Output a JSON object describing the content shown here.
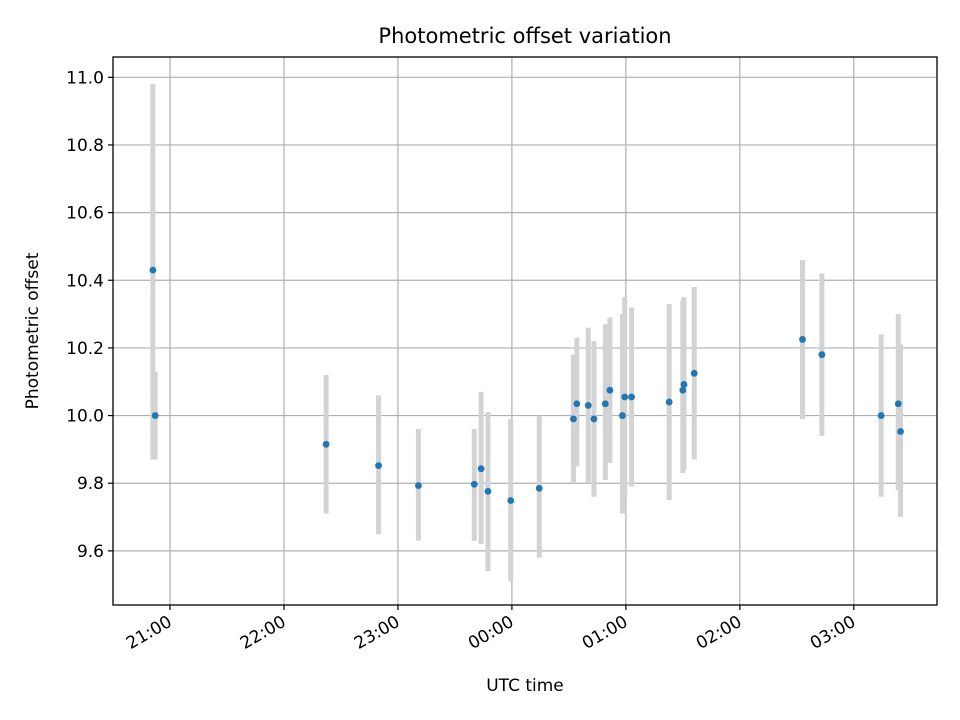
{
  "chart_data": {
    "type": "scatter",
    "title": "Photometric offset variation",
    "xlabel": "UTC time",
    "ylabel": "Photometric offset",
    "x_ticks": [
      "21:00",
      "22:00",
      "23:00",
      "00:00",
      "01:00",
      "02:00",
      "03:00"
    ],
    "x_tick_hours": [
      21,
      22,
      23,
      24,
      25,
      26,
      27
    ],
    "xlim_hours": [
      20.5,
      27.73
    ],
    "y_ticks": [
      "9.6",
      "9.8",
      "10.0",
      "10.2",
      "10.4",
      "10.6",
      "10.8",
      "11.0"
    ],
    "y_tick_values": [
      9.6,
      9.8,
      10.0,
      10.2,
      10.4,
      10.6,
      10.8,
      11.0
    ],
    "ylim": [
      9.44,
      11.06
    ],
    "grid": true,
    "x_unit_note": "times as UTC hours; values above 24 are after midnight of the following day",
    "points": [
      {
        "t": 20.85,
        "y": 10.43,
        "lo": 9.87,
        "hi": 10.98
      },
      {
        "t": 20.87,
        "y": 10.0,
        "lo": 9.87,
        "hi": 10.13
      },
      {
        "t": 22.37,
        "y": 9.915,
        "lo": 9.71,
        "hi": 10.12
      },
      {
        "t": 22.83,
        "y": 9.852,
        "lo": 9.65,
        "hi": 10.06
      },
      {
        "t": 23.18,
        "y": 9.793,
        "lo": 9.63,
        "hi": 9.96
      },
      {
        "t": 23.67,
        "y": 9.797,
        "lo": 9.63,
        "hi": 9.96
      },
      {
        "t": 23.73,
        "y": 9.843,
        "lo": 9.62,
        "hi": 10.07
      },
      {
        "t": 23.79,
        "y": 9.776,
        "lo": 9.54,
        "hi": 10.01
      },
      {
        "t": 23.99,
        "y": 9.749,
        "lo": 9.51,
        "hi": 9.99
      },
      {
        "t": 24.24,
        "y": 9.785,
        "lo": 9.58,
        "hi": 10.0
      },
      {
        "t": 24.54,
        "y": 9.99,
        "lo": 9.8,
        "hi": 10.18
      },
      {
        "t": 24.57,
        "y": 10.035,
        "lo": 9.85,
        "hi": 10.23
      },
      {
        "t": 24.67,
        "y": 10.03,
        "lo": 9.8,
        "hi": 10.26
      },
      {
        "t": 24.72,
        "y": 9.99,
        "lo": 9.76,
        "hi": 10.22
      },
      {
        "t": 24.82,
        "y": 10.035,
        "lo": 9.81,
        "hi": 10.27
      },
      {
        "t": 24.86,
        "y": 10.075,
        "lo": 9.86,
        "hi": 10.29
      },
      {
        "t": 24.97,
        "y": 10.0,
        "lo": 9.71,
        "hi": 10.3
      },
      {
        "t": 24.99,
        "y": 10.055,
        "lo": 9.76,
        "hi": 10.35
      },
      {
        "t": 25.05,
        "y": 10.055,
        "lo": 9.79,
        "hi": 10.32
      },
      {
        "t": 25.38,
        "y": 10.04,
        "lo": 9.75,
        "hi": 10.33
      },
      {
        "t": 25.5,
        "y": 10.075,
        "lo": 9.83,
        "hi": 10.34
      },
      {
        "t": 25.51,
        "y": 10.092,
        "lo": 9.84,
        "hi": 10.35
      },
      {
        "t": 25.6,
        "y": 10.125,
        "lo": 9.87,
        "hi": 10.38
      },
      {
        "t": 26.55,
        "y": 10.225,
        "lo": 9.99,
        "hi": 10.46
      },
      {
        "t": 26.72,
        "y": 10.18,
        "lo": 9.94,
        "hi": 10.42
      },
      {
        "t": 27.24,
        "y": 10.0,
        "lo": 9.76,
        "hi": 10.24
      },
      {
        "t": 27.39,
        "y": 10.035,
        "lo": 9.78,
        "hi": 10.3
      },
      {
        "t": 27.41,
        "y": 9.953,
        "lo": 9.7,
        "hi": 10.21
      }
    ],
    "colors": {
      "points": "#1f77b4",
      "errorbars": "#d3d3d3",
      "grid": "#b0b0b0",
      "axes": "#000000"
    }
  }
}
